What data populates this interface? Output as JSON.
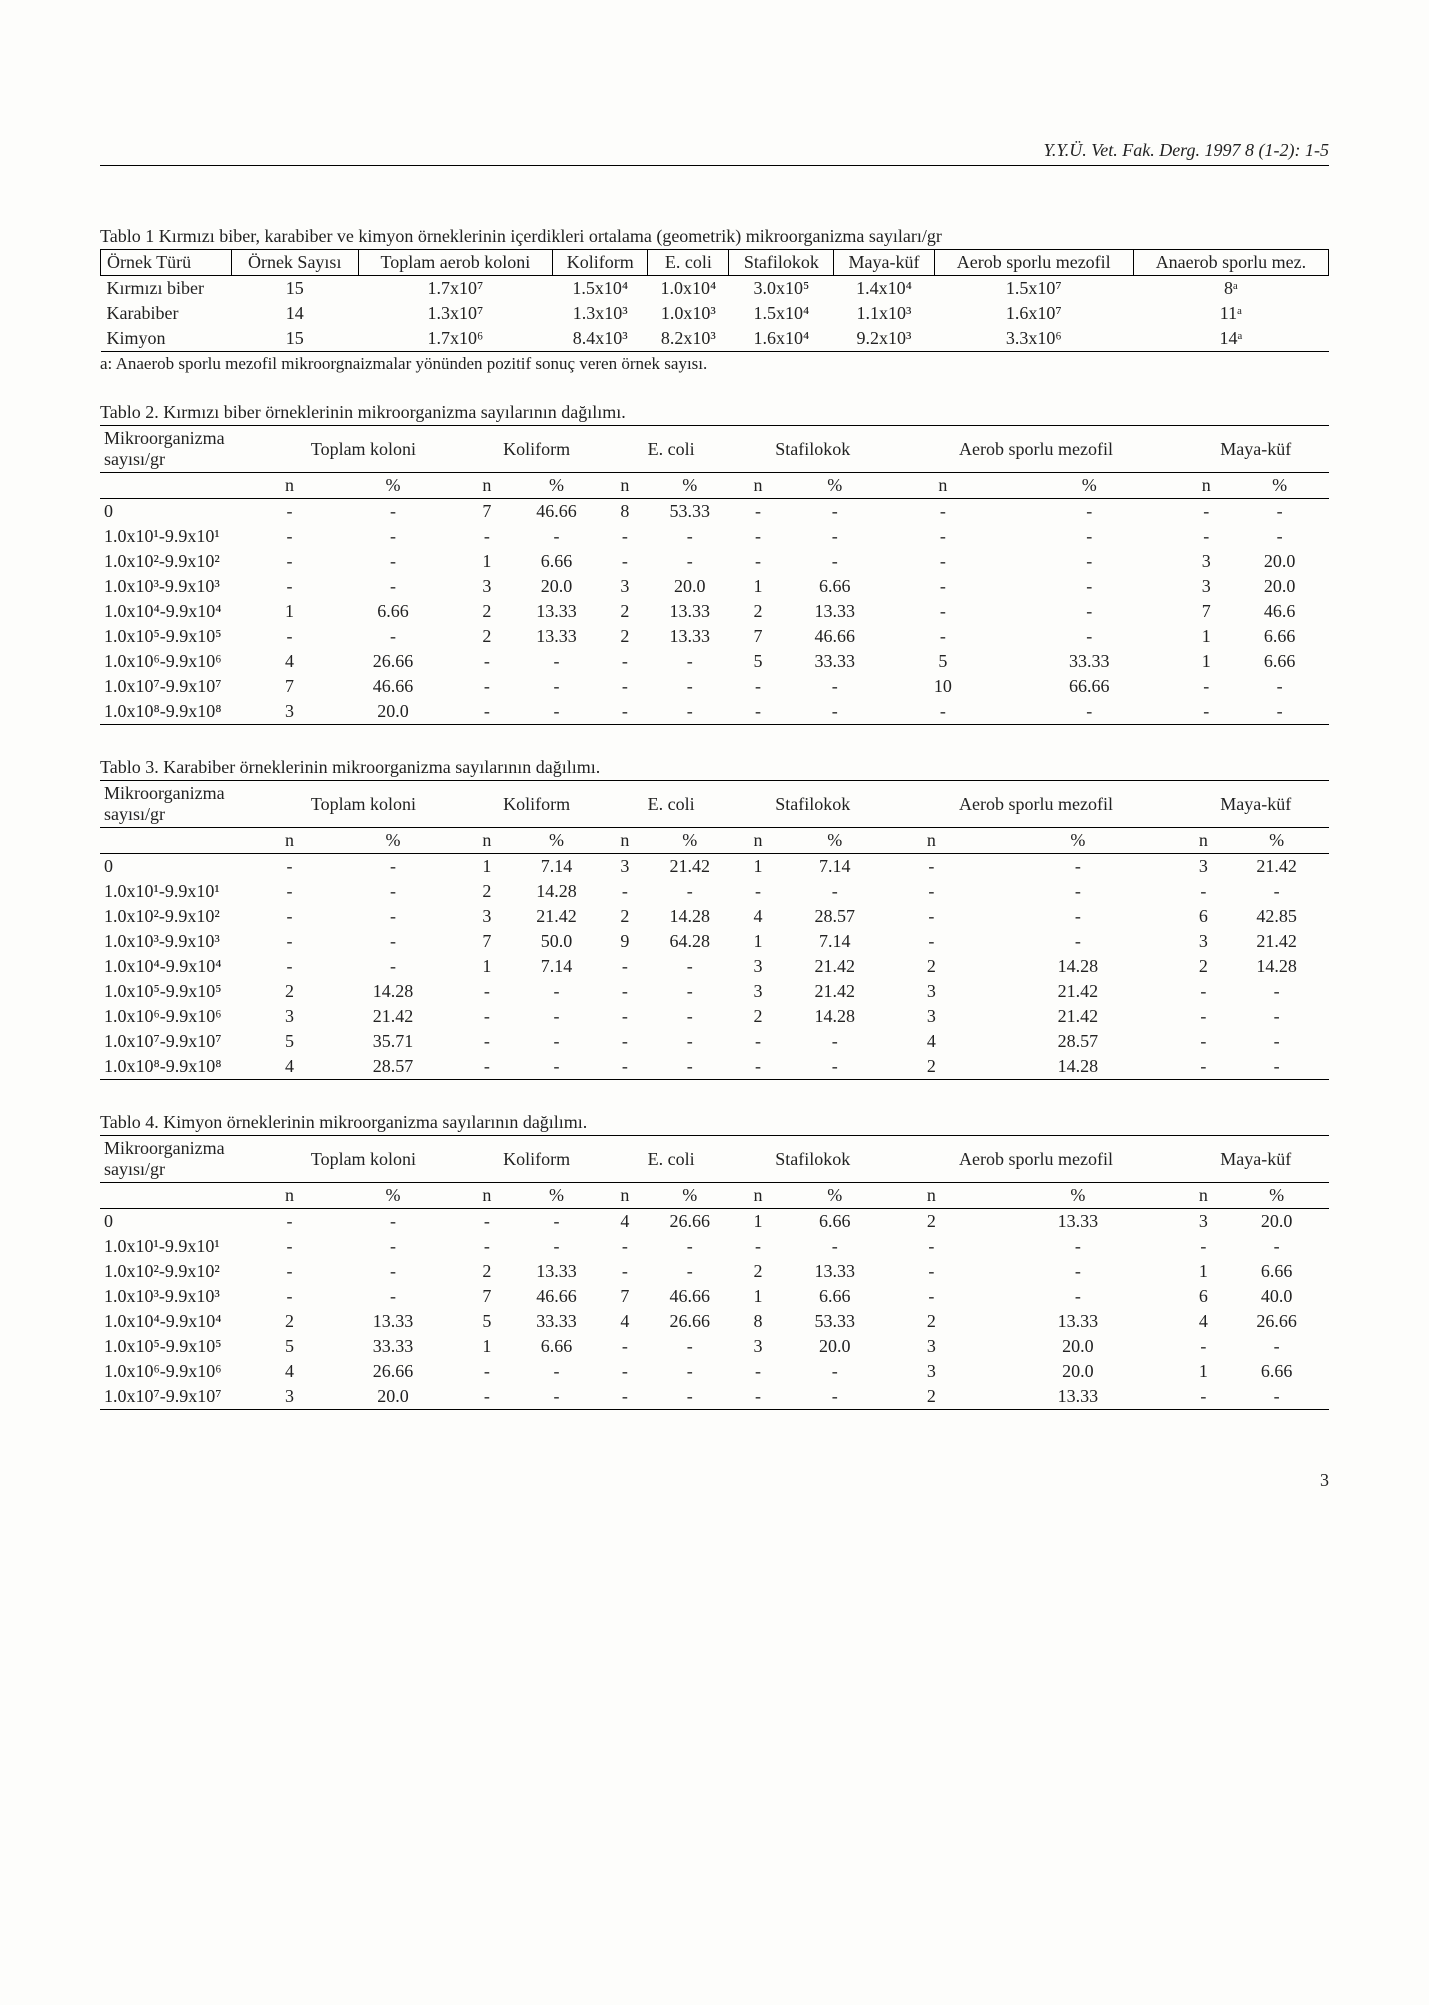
{
  "journal": "Y.Y.Ü. Vet. Fak. Derg. 1997 8 (1-2): 1-5",
  "t1": {
    "caption": "Tablo 1 Kırmızı biber, karabiber ve kimyon örneklerinin içerdikleri ortalama (geometrik) mikroorganizma sayıları/gr",
    "head": [
      "Örnek Türü",
      "Örnek Sayısı",
      "Toplam aerob koloni",
      "Koliform",
      "E. coli",
      "Stafilokok",
      "Maya-küf",
      "Aerob sporlu mezofil",
      "Anaerob sporlu mez."
    ],
    "rows": [
      [
        "Kırmızı biber",
        "15",
        "1.7x10⁷",
        "1.5x10⁴",
        "1.0x10⁴",
        "3.0x10⁵",
        "1.4x10⁴",
        "1.5x10⁷",
        "8ᵃ"
      ],
      [
        "Karabiber",
        "14",
        "1.3x10⁷",
        "1.3x10³",
        "1.0x10³",
        "1.5x10⁴",
        "1.1x10³",
        "1.6x10⁷",
        "11ᵃ"
      ],
      [
        "Kimyon",
        "15",
        "1.7x10⁶",
        "8.4x10³",
        "8.2x10³",
        "1.6x10⁴",
        "9.2x10³",
        "3.3x10⁶",
        "14ᵃ"
      ]
    ],
    "footnote": "a: Anaerob sporlu mezofil mikroorgnaizmalar yönünden pozitif sonuç veren örnek sayısı."
  },
  "ranges": [
    "0",
    "1.0x10¹-9.9x10¹",
    "1.0x10²-9.9x10²",
    "1.0x10³-9.9x10³",
    "1.0x10⁴-9.9x10⁴",
    "1.0x10⁵-9.9x10⁵",
    "1.0x10⁶-9.9x10⁶",
    "1.0x10⁷-9.9x10⁷",
    "1.0x10⁸-9.9x10⁸"
  ],
  "groupsLabel": "Mikroorganizma sayısı/gr",
  "groups": [
    "Toplam koloni",
    "Koliform",
    "E. coli",
    "Stafilokok",
    "Aerob sporlu mezofil",
    "Maya-küf"
  ],
  "subs": [
    "n",
    "%",
    "n",
    "%",
    "n",
    "%",
    "n",
    "%",
    "n",
    "%",
    "n",
    "%"
  ],
  "t2": {
    "caption": "Tablo 2.    Kırmızı biber örneklerinin mikroorganizma sayılarının dağılımı.",
    "rows": [
      [
        "-",
        "-",
        "7",
        "46.66",
        "8",
        "53.33",
        "-",
        "-",
        "-",
        "-",
        "-",
        "-"
      ],
      [
        "-",
        "-",
        "-",
        "-",
        "-",
        "-",
        "-",
        "-",
        "-",
        "-",
        "-",
        "-"
      ],
      [
        "-",
        "-",
        "1",
        "6.66",
        "-",
        "-",
        "-",
        "-",
        "-",
        "-",
        "3",
        "20.0"
      ],
      [
        "-",
        "-",
        "3",
        "20.0",
        "3",
        "20.0",
        "1",
        "6.66",
        "-",
        "-",
        "3",
        "20.0"
      ],
      [
        "1",
        "6.66",
        "2",
        "13.33",
        "2",
        "13.33",
        "2",
        "13.33",
        "-",
        "-",
        "7",
        "46.6"
      ],
      [
        "-",
        "-",
        "2",
        "13.33",
        "2",
        "13.33",
        "7",
        "46.66",
        "-",
        "-",
        "1",
        "6.66"
      ],
      [
        "4",
        "26.66",
        "-",
        "-",
        "-",
        "-",
        "5",
        "33.33",
        "5",
        "33.33",
        "1",
        "6.66"
      ],
      [
        "7",
        "46.66",
        "-",
        "-",
        "-",
        "-",
        "-",
        "-",
        "10",
        "66.66",
        "-",
        "-"
      ],
      [
        "3",
        "20.0",
        "-",
        "-",
        "-",
        "-",
        "-",
        "-",
        "-",
        "-",
        "-",
        "-"
      ]
    ]
  },
  "t3": {
    "caption": "Tablo 3.    Karabiber örneklerinin mikroorganizma sayılarının dağılımı.",
    "rows": [
      [
        "-",
        "-",
        "1",
        "7.14",
        "3",
        "21.42",
        "1",
        "7.14",
        "-",
        "-",
        "3",
        "21.42"
      ],
      [
        "-",
        "-",
        "2",
        "14.28",
        "-",
        "-",
        "-",
        "-",
        "-",
        "-",
        "-",
        "-"
      ],
      [
        "-",
        "-",
        "3",
        "21.42",
        "2",
        "14.28",
        "4",
        "28.57",
        "-",
        "-",
        "6",
        "42.85"
      ],
      [
        "-",
        "-",
        "7",
        "50.0",
        "9",
        "64.28",
        "1",
        "7.14",
        "-",
        "-",
        "3",
        "21.42"
      ],
      [
        "-",
        "-",
        "1",
        "7.14",
        "-",
        "-",
        "3",
        "21.42",
        "2",
        "14.28",
        "2",
        "14.28"
      ],
      [
        "2",
        "14.28",
        "-",
        "-",
        "-",
        "-",
        "3",
        "21.42",
        "3",
        "21.42",
        "-",
        "-"
      ],
      [
        "3",
        "21.42",
        "-",
        "-",
        "-",
        "-",
        "2",
        "14.28",
        "3",
        "21.42",
        "-",
        "-"
      ],
      [
        "5",
        "35.71",
        "-",
        "-",
        "-",
        "-",
        "-",
        "-",
        "4",
        "28.57",
        "-",
        "-"
      ],
      [
        "4",
        "28.57",
        "-",
        "-",
        "-",
        "-",
        "-",
        "-",
        "2",
        "14.28",
        "-",
        "-"
      ]
    ]
  },
  "t4": {
    "caption": "Tablo 4.    Kimyon örneklerinin mikroorganizma sayılarının dağılımı.",
    "ranges": [
      "0",
      "1.0x10¹-9.9x10¹",
      "1.0x10²-9.9x10²",
      "1.0x10³-9.9x10³",
      "1.0x10⁴-9.9x10⁴",
      "1.0x10⁵-9.9x10⁵",
      "1.0x10⁶-9.9x10⁶",
      "1.0x10⁷-9.9x10⁷"
    ],
    "rows": [
      [
        "-",
        "-",
        "-",
        "-",
        "4",
        "26.66",
        "1",
        "6.66",
        "2",
        "13.33",
        "3",
        "20.0"
      ],
      [
        "-",
        "-",
        "-",
        "-",
        "-",
        "-",
        "-",
        "-",
        "-",
        "-",
        "-",
        "-"
      ],
      [
        "-",
        "-",
        "2",
        "13.33",
        "-",
        "-",
        "2",
        "13.33",
        "-",
        "-",
        "1",
        "6.66"
      ],
      [
        "-",
        "-",
        "7",
        "46.66",
        "7",
        "46.66",
        "1",
        "6.66",
        "-",
        "-",
        "6",
        "40.0"
      ],
      [
        "2",
        "13.33",
        "5",
        "33.33",
        "4",
        "26.66",
        "8",
        "53.33",
        "2",
        "13.33",
        "4",
        "26.66"
      ],
      [
        "5",
        "33.33",
        "1",
        "6.66",
        "-",
        "-",
        "3",
        "20.0",
        "3",
        "20.0",
        "-",
        "-"
      ],
      [
        "4",
        "26.66",
        "-",
        "-",
        "-",
        "-",
        "-",
        "-",
        "3",
        "20.0",
        "1",
        "6.66"
      ],
      [
        "3",
        "20.0",
        "-",
        "-",
        "-",
        "-",
        "-",
        "-",
        "2",
        "13.33",
        "-",
        "-"
      ]
    ]
  },
  "pageNumber": "3"
}
